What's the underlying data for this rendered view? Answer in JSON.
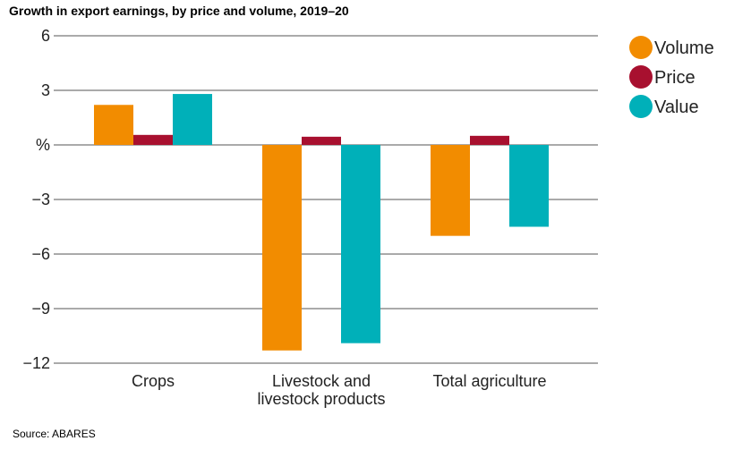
{
  "chart_data": {
    "type": "bar",
    "title": "Growth in export earnings, by price and volume, 2019–20",
    "ylabel": "",
    "ylim": [
      -12,
      6
    ],
    "yticks": [
      6,
      3,
      0,
      -3,
      -6,
      -9,
      -12
    ],
    "ytick_labels": [
      "6",
      "3",
      "%",
      "−3",
      "−6",
      "−9",
      "−12"
    ],
    "categories": [
      [
        "Crops"
      ],
      [
        "Livestock and",
        "livestock products"
      ],
      [
        "Total agriculture"
      ]
    ],
    "series": [
      {
        "name": "Volume",
        "color": "#f28c00",
        "values": [
          2.2,
          -11.3,
          -5.0
        ]
      },
      {
        "name": "Price",
        "color": "#a8102f",
        "values": [
          0.55,
          0.45,
          0.5
        ]
      },
      {
        "name": "Value",
        "color": "#00b0b9",
        "values": [
          2.8,
          -10.9,
          -4.5
        ]
      }
    ],
    "grid": true,
    "legend_position": "top-right"
  },
  "source": "Source: ABARES"
}
